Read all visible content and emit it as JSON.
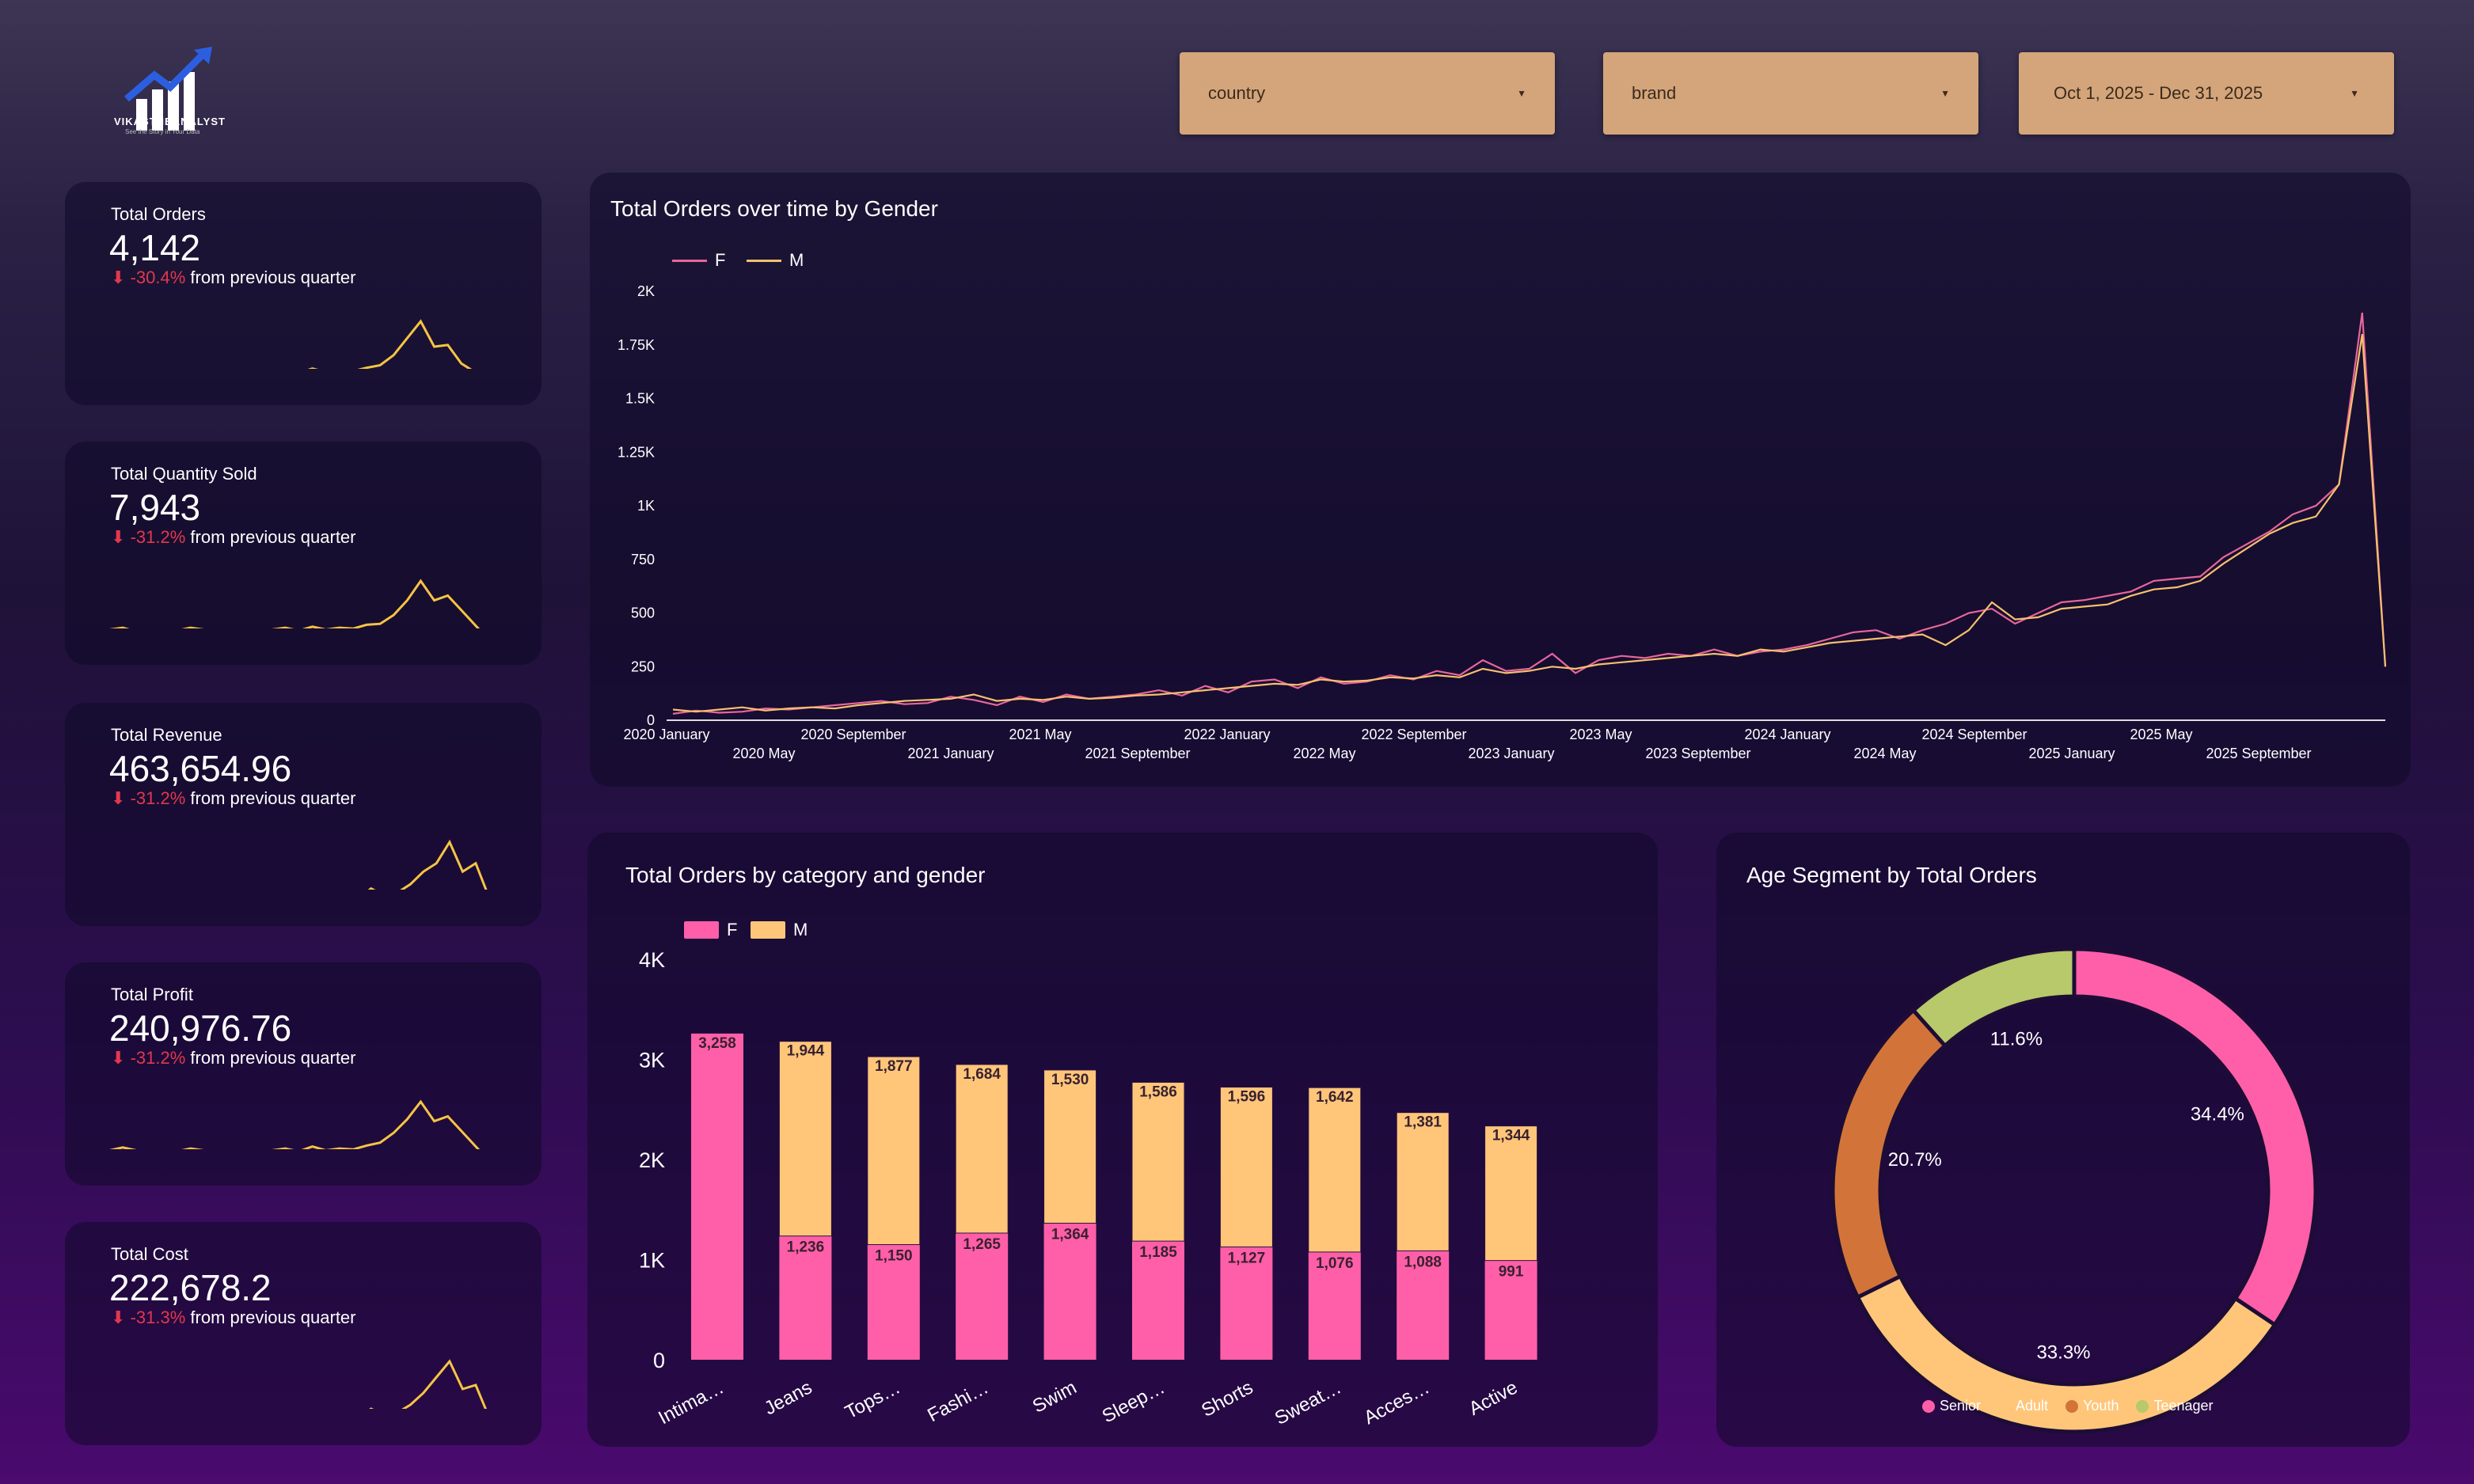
{
  "brand": {
    "name": "VIKASTHEANALYST",
    "tagline": "See the Story in Your Data"
  },
  "filters": [
    {
      "label": "country"
    },
    {
      "label": "brand"
    },
    {
      "label": "Oct 1, 2025 - Dec 31, 2025"
    }
  ],
  "kpis": [
    {
      "title": "Total Orders",
      "value": "4,142",
      "delta": "-30.4%",
      "delta_suffix": "from previous quarter",
      "trend": [
        40,
        42,
        38,
        39,
        37,
        38,
        41,
        40,
        39,
        38,
        40,
        39,
        40,
        42,
        39,
        44,
        40,
        42,
        41,
        45,
        48,
        60,
        80,
        100,
        70,
        72,
        50,
        40,
        30,
        25
      ]
    },
    {
      "title": "Total Quantity Sold",
      "value": "7,943",
      "delta": "-31.2%",
      "delta_suffix": "from previous quarter",
      "trend": [
        40,
        42,
        38,
        39,
        38,
        39,
        42,
        40,
        39,
        38,
        40,
        39,
        40,
        42,
        39,
        43,
        40,
        42,
        41,
        45,
        46,
        55,
        70,
        90,
        70,
        75,
        60,
        45,
        30,
        25
      ]
    },
    {
      "title": "Total Revenue",
      "value": "463,654.96",
      "delta": "-31.2%",
      "delta_suffix": "from previous quarter",
      "trend": [
        40,
        45,
        38,
        36,
        38,
        39,
        38,
        40,
        30,
        42,
        45,
        40,
        42,
        41,
        42,
        38,
        42,
        40,
        45,
        38,
        50,
        42,
        45,
        55,
        70,
        80,
        105,
        70,
        80,
        40,
        30
      ]
    },
    {
      "title": "Total Profit",
      "value": "240,976.76",
      "delta": "-31.2%",
      "delta_suffix": "from previous quarter",
      "trend": [
        40,
        43,
        40,
        39,
        38,
        39,
        42,
        40,
        39,
        38,
        40,
        39,
        40,
        42,
        39,
        44,
        40,
        42,
        41,
        45,
        48,
        58,
        72,
        90,
        70,
        75,
        60,
        45,
        30,
        25
      ]
    },
    {
      "title": "Total Cost",
      "value": "222,678.2",
      "delta": "-31.3%",
      "delta_suffix": "from previous quarter",
      "trend": [
        40,
        45,
        38,
        36,
        38,
        39,
        38,
        40,
        30,
        42,
        45,
        40,
        42,
        41,
        42,
        38,
        42,
        40,
        45,
        38,
        50,
        42,
        45,
        55,
        70,
        90,
        110,
        75,
        80,
        40,
        30
      ]
    }
  ],
  "chart_data": [
    {
      "type": "line",
      "title": "Total Orders over time by Gender",
      "x_tick_labels_row1": [
        "2020 January",
        "2020 September",
        "2021 May",
        "2022 January",
        "2022 September",
        "2023 May",
        "2024 January",
        "2024 September",
        "2025 May"
      ],
      "x_tick_labels_row2": [
        "2020 May",
        "2021 January",
        "2021 September",
        "2022 May",
        "2023 January",
        "2023 September",
        "2024 May",
        "2025 January",
        "2025 September"
      ],
      "y_ticks": [
        "0",
        "250",
        "500",
        "750",
        "1K",
        "1.25K",
        "1.5K",
        "1.75K",
        "2K"
      ],
      "ylim": [
        0,
        2000
      ],
      "series": [
        {
          "name": "F",
          "color": "#e8669b",
          "values": [
            30,
            45,
            35,
            40,
            55,
            50,
            60,
            70,
            80,
            90,
            75,
            80,
            110,
            95,
            70,
            110,
            85,
            120,
            100,
            110,
            120,
            140,
            115,
            160,
            130,
            180,
            190,
            150,
            200,
            170,
            180,
            210,
            190,
            230,
            210,
            280,
            230,
            240,
            310,
            220,
            280,
            300,
            290,
            310,
            300,
            330,
            300,
            320,
            330,
            350,
            380,
            410,
            420,
            380,
            420,
            450,
            500,
            520,
            450,
            500,
            550,
            560,
            580,
            600,
            650,
            660,
            670,
            760,
            820,
            880,
            960,
            1000,
            1100,
            1900,
            250
          ]
        },
        {
          "name": "M",
          "color": "#f6c06e",
          "values": [
            50,
            40,
            50,
            60,
            45,
            55,
            60,
            55,
            70,
            80,
            90,
            95,
            100,
            120,
            90,
            100,
            95,
            110,
            100,
            105,
            115,
            120,
            130,
            140,
            150,
            160,
            170,
            165,
            190,
            180,
            185,
            200,
            195,
            210,
            200,
            240,
            220,
            230,
            250,
            240,
            260,
            270,
            280,
            290,
            300,
            310,
            300,
            330,
            320,
            340,
            360,
            370,
            380,
            390,
            400,
            350,
            420,
            550,
            470,
            480,
            520,
            530,
            540,
            580,
            610,
            620,
            650,
            730,
            800,
            870,
            920,
            950,
            1100,
            1800,
            250
          ]
        }
      ]
    },
    {
      "type": "bar",
      "stacked": true,
      "title": "Total Orders by category and gender",
      "categories": [
        "Intima…",
        "Jeans",
        "Tops…",
        "Fashi…",
        "Swim",
        "Sleep…",
        "Shorts",
        "Sweat…",
        "Acces…",
        "Active"
      ],
      "ylim": [
        0,
        4000
      ],
      "y_ticks": [
        "0",
        "1K",
        "2K",
        "3K",
        "4K"
      ],
      "series": [
        {
          "name": "F",
          "color": "#ff5fa8",
          "values": [
            3258,
            1236,
            1150,
            1265,
            1364,
            1185,
            1127,
            1076,
            1088,
            991
          ]
        },
        {
          "name": "M",
          "color": "#ffc67a",
          "values": [
            0,
            1944,
            1877,
            1684,
            1530,
            1586,
            1596,
            1642,
            1381,
            1344
          ]
        }
      ],
      "top_labels": [
        "3,258",
        "1,944",
        "1,877",
        "1,684",
        "1,530",
        "1,586",
        "1,596",
        "1,642",
        "1,381",
        "1,344"
      ],
      "f_labels": [
        "",
        "1,236",
        "1,150",
        "1,265",
        "1,364",
        "1,185",
        "1,127",
        "1,076",
        "1,088",
        "991"
      ]
    },
    {
      "type": "pie",
      "donut": true,
      "title": "Age Segment by Total Orders",
      "slices": [
        {
          "name": "Senior",
          "value": 34.4,
          "label": "34.4%",
          "color": "#ff5fa8"
        },
        {
          "name": "Adult",
          "value": 33.3,
          "label": "33.3%",
          "color": "#ffc67a"
        },
        {
          "name": "Youth",
          "value": 20.7,
          "label": "20.7%",
          "color": "#d2743a"
        },
        {
          "name": "Teenager",
          "value": 11.6,
          "label": "11.6%",
          "color": "#b7c96a"
        }
      ]
    }
  ]
}
